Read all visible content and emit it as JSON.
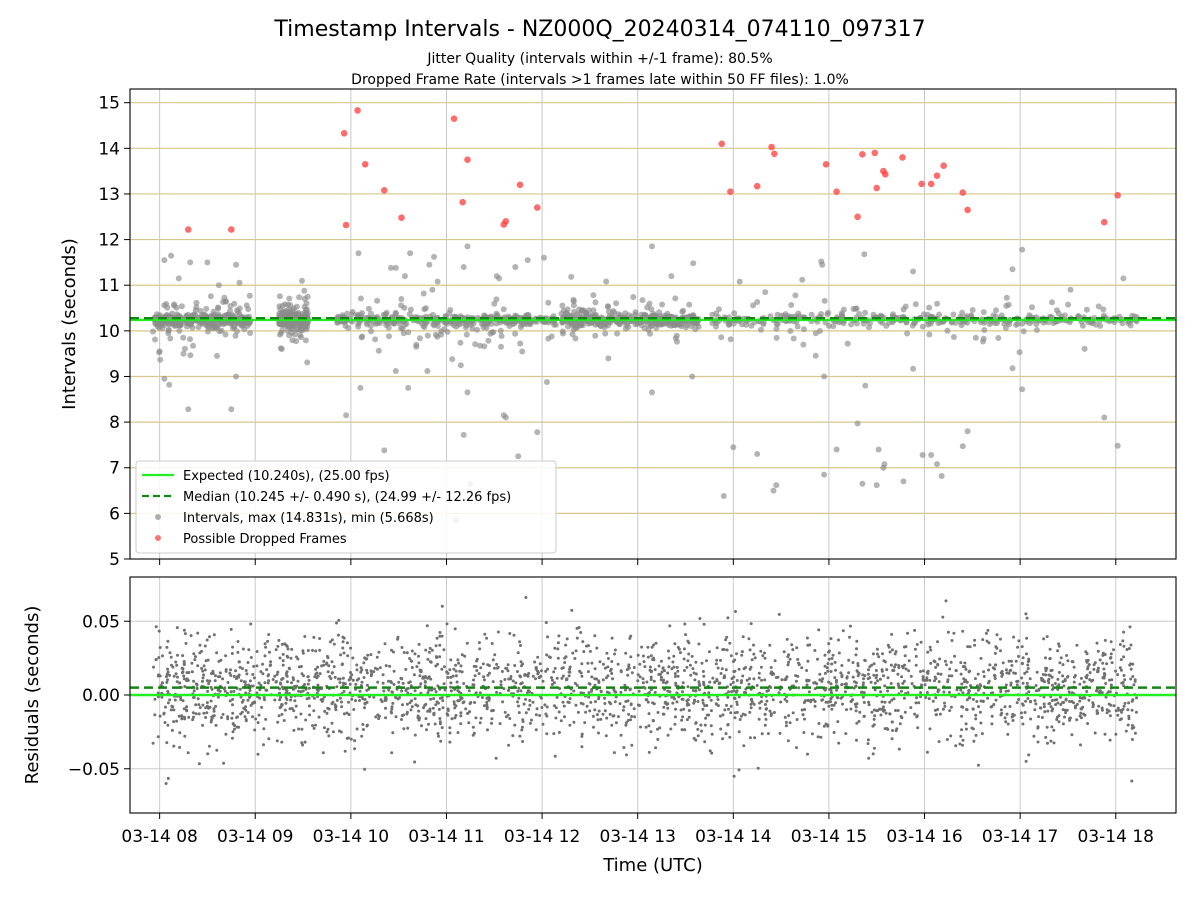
{
  "chart_data": [
    {
      "type": "scatter",
      "title": "Timestamp Intervals - NZ000Q_20240314_074110_097317",
      "subtitle_lines": [
        "Jitter Quality (intervals within +/-1 frame): 80.5%",
        "Dropped Frame Rate (intervals >1 frames late within 50 FF files): 1.0%"
      ],
      "ylabel": "Intervals (seconds)",
      "ylim": [
        5,
        15.3
      ],
      "yticks": [
        5,
        6,
        7,
        8,
        9,
        10,
        11,
        12,
        13,
        14,
        15
      ],
      "x_hours_range": [
        7.69,
        18.63
      ],
      "expected_value": 10.24,
      "median_value": 10.245,
      "legend_position": "lower left",
      "legend": [
        {
          "label": "Expected (10.240s), (25.00 fps)",
          "kind": "solid-line",
          "color": "#22ee22"
        },
        {
          "label": "Median (10.245 +/- 0.490 s), (24.99 +/- 12.26 fps)",
          "kind": "dashed-line",
          "color": "#118811"
        },
        {
          "label": "Intervals, max (14.831s), min (5.668s)",
          "kind": "marker",
          "color": "#8c8c8c"
        },
        {
          "label": "Possible Dropped Frames",
          "kind": "marker",
          "color": "#ff3b3b"
        }
      ],
      "dropped_frames": [
        {
          "t": 8.3,
          "y": 12.22
        },
        {
          "t": 8.75,
          "y": 12.22
        },
        {
          "t": 9.93,
          "y": 14.33
        },
        {
          "t": 9.95,
          "y": 12.32
        },
        {
          "t": 10.07,
          "y": 14.83
        },
        {
          "t": 10.15,
          "y": 13.65
        },
        {
          "t": 10.35,
          "y": 13.08
        },
        {
          "t": 10.53,
          "y": 12.48
        },
        {
          "t": 11.08,
          "y": 14.65
        },
        {
          "t": 11.17,
          "y": 12.82
        },
        {
          "t": 11.22,
          "y": 13.75
        },
        {
          "t": 11.6,
          "y": 12.33
        },
        {
          "t": 11.62,
          "y": 12.4
        },
        {
          "t": 11.77,
          "y": 13.2
        },
        {
          "t": 11.95,
          "y": 12.7
        },
        {
          "t": 13.88,
          "y": 14.1
        },
        {
          "t": 13.97,
          "y": 13.05
        },
        {
          "t": 14.25,
          "y": 13.17
        },
        {
          "t": 14.4,
          "y": 14.03
        },
        {
          "t": 14.43,
          "y": 13.88
        },
        {
          "t": 14.97,
          "y": 13.65
        },
        {
          "t": 15.08,
          "y": 13.05
        },
        {
          "t": 15.3,
          "y": 12.5
        },
        {
          "t": 15.35,
          "y": 13.87
        },
        {
          "t": 15.48,
          "y": 13.9
        },
        {
          "t": 15.5,
          "y": 13.13
        },
        {
          "t": 15.57,
          "y": 13.5
        },
        {
          "t": 15.59,
          "y": 13.43
        },
        {
          "t": 15.77,
          "y": 13.8
        },
        {
          "t": 15.97,
          "y": 13.22
        },
        {
          "t": 16.07,
          "y": 13.22
        },
        {
          "t": 16.13,
          "y": 13.4
        },
        {
          "t": 16.2,
          "y": 13.62
        },
        {
          "t": 16.4,
          "y": 13.03
        },
        {
          "t": 16.45,
          "y": 12.65
        },
        {
          "t": 17.88,
          "y": 12.38
        },
        {
          "t": 18.02,
          "y": 12.97
        }
      ],
      "low_outliers": [
        {
          "t": 8.0,
          "y": 9.55
        },
        {
          "t": 8.05,
          "y": 8.95
        },
        {
          "t": 8.1,
          "y": 8.82
        },
        {
          "t": 8.25,
          "y": 9.5
        },
        {
          "t": 8.3,
          "y": 8.28
        },
        {
          "t": 8.6,
          "y": 9.45
        },
        {
          "t": 8.75,
          "y": 8.28
        },
        {
          "t": 8.8,
          "y": 9.0
        },
        {
          "t": 9.95,
          "y": 8.15
        },
        {
          "t": 10.1,
          "y": 8.75
        },
        {
          "t": 10.35,
          "y": 7.38
        },
        {
          "t": 10.47,
          "y": 9.12
        },
        {
          "t": 10.6,
          "y": 8.75
        },
        {
          "t": 10.8,
          "y": 9.12
        },
        {
          "t": 11.18,
          "y": 7.72
        },
        {
          "t": 11.22,
          "y": 8.65
        },
        {
          "t": 11.25,
          "y": 6.65
        },
        {
          "t": 11.1,
          "y": 5.85
        },
        {
          "t": 10.05,
          "y": 5.72
        },
        {
          "t": 11.6,
          "y": 8.15
        },
        {
          "t": 11.62,
          "y": 8.1
        },
        {
          "t": 11.75,
          "y": 7.25
        },
        {
          "t": 11.95,
          "y": 7.78
        },
        {
          "t": 12.05,
          "y": 8.88
        },
        {
          "t": 13.15,
          "y": 8.65
        },
        {
          "t": 13.57,
          "y": 9.0
        },
        {
          "t": 13.9,
          "y": 6.38
        },
        {
          "t": 14.0,
          "y": 7.45
        },
        {
          "t": 14.25,
          "y": 7.3
        },
        {
          "t": 14.42,
          "y": 6.5
        },
        {
          "t": 14.45,
          "y": 6.62
        },
        {
          "t": 14.95,
          "y": 6.85
        },
        {
          "t": 14.95,
          "y": 9.0
        },
        {
          "t": 15.08,
          "y": 7.4
        },
        {
          "t": 15.3,
          "y": 7.97
        },
        {
          "t": 15.35,
          "y": 6.65
        },
        {
          "t": 15.38,
          "y": 8.8
        },
        {
          "t": 15.5,
          "y": 6.62
        },
        {
          "t": 15.52,
          "y": 7.4
        },
        {
          "t": 15.57,
          "y": 7.0
        },
        {
          "t": 15.58,
          "y": 7.08
        },
        {
          "t": 15.78,
          "y": 6.7
        },
        {
          "t": 15.88,
          "y": 9.17
        },
        {
          "t": 15.98,
          "y": 7.28
        },
        {
          "t": 16.07,
          "y": 7.28
        },
        {
          "t": 16.13,
          "y": 7.08
        },
        {
          "t": 16.18,
          "y": 6.82
        },
        {
          "t": 16.4,
          "y": 7.47
        },
        {
          "t": 16.45,
          "y": 7.8
        },
        {
          "t": 16.92,
          "y": 9.18
        },
        {
          "t": 17.02,
          "y": 8.72
        },
        {
          "t": 17.88,
          "y": 8.1
        },
        {
          "t": 18.02,
          "y": 7.48
        }
      ],
      "high_outliers": [
        {
          "t": 8.05,
          "y": 11.55
        },
        {
          "t": 8.12,
          "y": 11.65
        },
        {
          "t": 8.2,
          "y": 11.15
        },
        {
          "t": 8.32,
          "y": 11.5
        },
        {
          "t": 8.5,
          "y": 11.5
        },
        {
          "t": 8.62,
          "y": 11.0
        },
        {
          "t": 8.8,
          "y": 11.45
        },
        {
          "t": 10.08,
          "y": 11.7
        },
        {
          "t": 10.42,
          "y": 11.38
        },
        {
          "t": 10.47,
          "y": 11.38
        },
        {
          "t": 10.62,
          "y": 11.7
        },
        {
          "t": 10.82,
          "y": 11.45
        },
        {
          "t": 10.87,
          "y": 11.62
        },
        {
          "t": 11.18,
          "y": 11.4
        },
        {
          "t": 11.22,
          "y": 11.85
        },
        {
          "t": 11.55,
          "y": 11.15
        },
        {
          "t": 11.72,
          "y": 11.4
        },
        {
          "t": 11.85,
          "y": 11.55
        },
        {
          "t": 12.02,
          "y": 11.6
        },
        {
          "t": 13.15,
          "y": 11.85
        },
        {
          "t": 13.58,
          "y": 11.48
        },
        {
          "t": 14.72,
          "y": 11.12
        },
        {
          "t": 14.92,
          "y": 11.52
        },
        {
          "t": 14.93,
          "y": 11.45
        },
        {
          "t": 15.37,
          "y": 11.68
        },
        {
          "t": 15.88,
          "y": 11.3
        },
        {
          "t": 16.92,
          "y": 11.35
        },
        {
          "t": 17.02,
          "y": 11.78
        },
        {
          "t": 18.08,
          "y": 11.15
        }
      ]
    },
    {
      "type": "scatter",
      "ylabel": "Residuals (seconds)",
      "xlabel": "Time (UTC)",
      "ylim": [
        -0.08,
        0.08
      ],
      "yticks": [
        -0.05,
        0.0,
        0.05
      ],
      "ytick_labels": [
        "−0.05",
        "0.00",
        "0.05"
      ],
      "expected_residual": 0.0,
      "median_residual": 0.005,
      "x_hours_range": [
        7.69,
        18.63
      ],
      "xticks_hours": [
        8,
        9,
        10,
        11,
        12,
        13,
        14,
        15,
        16,
        17,
        18
      ],
      "xtick_labels": [
        "03-14 08",
        "03-14 09",
        "03-14 10",
        "03-14 11",
        "03-14 12",
        "03-14 13",
        "03-14 14",
        "03-14 15",
        "03-14 16",
        "03-14 17",
        "03-14 18"
      ],
      "distribution": {
        "t_start": 7.92,
        "t_end": 18.22,
        "mean": 0.005,
        "std": 0.018,
        "clip": 0.078
      }
    }
  ],
  "colors": {
    "expected": "#22ee22",
    "median": "#118811",
    "points": "#8c8c8c",
    "dropped": "#ff3b3b",
    "gridline_top": "#d8c68a",
    "gridline_bottom": "#cccccc",
    "residual_points": "#707070"
  }
}
